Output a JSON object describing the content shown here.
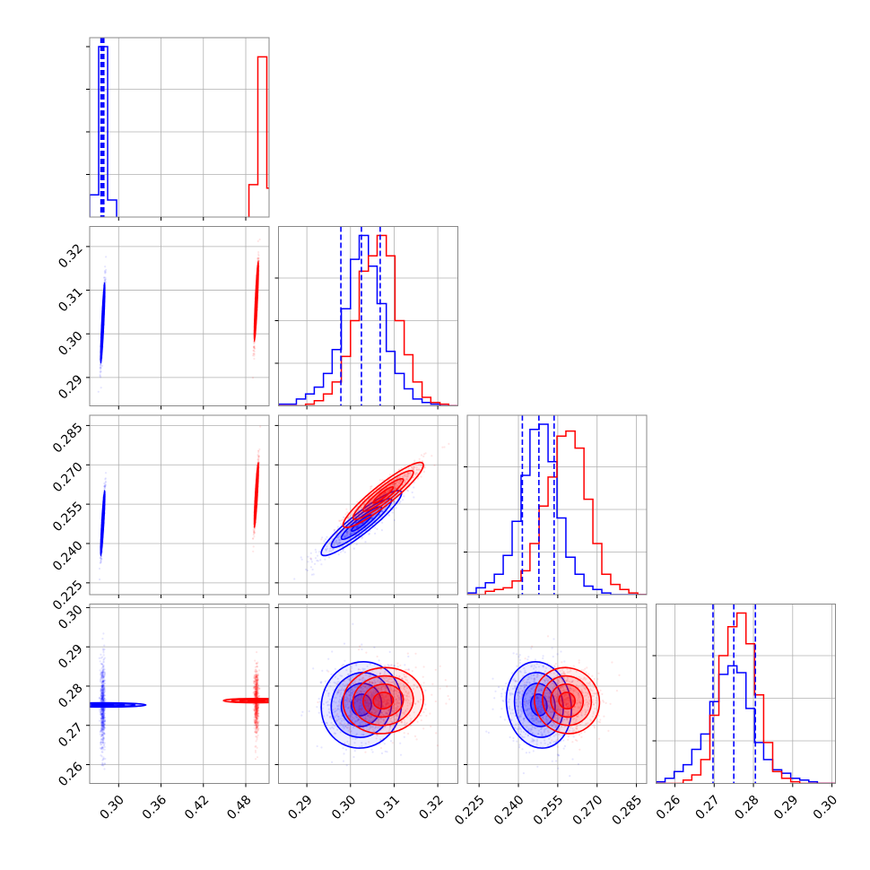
{
  "chart_data": {
    "type": "corner",
    "n_params": 4,
    "title": "",
    "legend": "none",
    "grid": true,
    "colors": {
      "series_a": "#0000ff",
      "series_b": "#ff0000",
      "frame": "#888888",
      "grid": "#b0b0b0"
    },
    "axes": [
      {
        "range": [
          0.259,
          0.513
        ],
        "ticks": [
          0.3,
          0.36,
          0.42,
          0.48
        ],
        "tick_labels": [
          "0.30",
          "0.36",
          "0.42",
          "0.48"
        ]
      },
      {
        "range": [
          0.2835,
          0.3246
        ],
        "ticks": [
          0.29,
          0.3,
          0.31,
          0.32
        ],
        "tick_labels": [
          "0.29",
          "0.30",
          "0.31",
          "0.32"
        ]
      },
      {
        "range": [
          0.2205,
          0.2889
        ],
        "ticks": [
          0.225,
          0.24,
          0.255,
          0.27,
          0.285
        ],
        "tick_labels": [
          "0.225",
          "0.240",
          "0.255",
          "0.270",
          "0.285"
        ]
      },
      {
        "range": [
          0.2552,
          0.3009
        ],
        "ticks": [
          0.26,
          0.27,
          0.28,
          0.29,
          0.3
        ],
        "tick_labels": [
          "0.26",
          "0.27",
          "0.28",
          "0.29",
          "0.30"
        ]
      }
    ],
    "quantiles_series_a": [
      [
        0.275,
        0.277,
        0.279
      ],
      [
        0.2978,
        0.3025,
        0.3068
      ],
      [
        0.2415,
        0.2478,
        0.2536
      ],
      [
        0.2697,
        0.275,
        0.2805
      ]
    ],
    "series": [
      {
        "name": "",
        "color": "#0000ff",
        "mean": [
          0.2775,
          0.3025,
          0.2478,
          0.2752
        ],
        "std": [
          0.0015,
          0.0046,
          0.0062,
          0.0055
        ],
        "corr": {
          "0-1": 0.9,
          "0-2": 0.9,
          "0-3": 0.0,
          "1-2": 0.92,
          "1-3": 0.05,
          "2-3": -0.1
        },
        "histograms": [
          {
            "edges": [
              0.259,
              0.2717,
              0.2844,
              0.2971
            ],
            "counts": [
              0.13,
              1.0,
              0.1
            ]
          },
          {
            "edges": [
              0.2835,
              0.2856,
              0.2876,
              0.2897,
              0.2917,
              0.2938,
              0.2958,
              0.2979,
              0.3,
              0.302,
              0.3041,
              0.3061,
              0.3082,
              0.3102,
              0.3123,
              0.3143,
              0.3164,
              0.3184,
              0.3205,
              0.3225,
              0.3246
            ],
            "counts": [
              0.01,
              0.01,
              0.04,
              0.07,
              0.11,
              0.19,
              0.33,
              0.57,
              0.86,
              1.0,
              0.82,
              0.6,
              0.32,
              0.19,
              0.1,
              0.04,
              0.02,
              0.01,
              0.0,
              0.0
            ]
          },
          {
            "edges": [
              0.2205,
              0.2239,
              0.2274,
              0.2308,
              0.2342,
              0.2376,
              0.241,
              0.2444,
              0.2479,
              0.2513,
              0.2547,
              0.2581,
              0.2616,
              0.265,
              0.2684,
              0.2718,
              0.2752,
              0.2787,
              0.2821,
              0.2855,
              0.2889
            ],
            "counts": [
              0.01,
              0.04,
              0.07,
              0.12,
              0.23,
              0.43,
              0.7,
              0.97,
              1.0,
              0.78,
              0.45,
              0.22,
              0.12,
              0.05,
              0.03,
              0.01,
              0.0,
              0.0,
              0.0,
              0.0
            ]
          },
          {
            "edges": [
              0.2552,
              0.2575,
              0.2598,
              0.2621,
              0.2643,
              0.2666,
              0.2689,
              0.2712,
              0.2735,
              0.2758,
              0.2781,
              0.2803,
              0.2826,
              0.2849,
              0.2872,
              0.2895,
              0.2918,
              0.2941,
              0.2963,
              0.2986,
              0.3009
            ],
            "counts": [
              0.01,
              0.03,
              0.07,
              0.11,
              0.2,
              0.29,
              0.48,
              0.64,
              0.69,
              0.65,
              0.44,
              0.24,
              0.14,
              0.08,
              0.06,
              0.03,
              0.02,
              0.01,
              0.0,
              0.0
            ]
          }
        ]
      },
      {
        "name": "",
        "color": "#ff0000",
        "mean": [
          0.495,
          0.3075,
          0.2585,
          0.2763
        ],
        "std": [
          0.0015,
          0.0046,
          0.0062,
          0.0042
        ],
        "corr": {
          "0-1": 0.9,
          "0-2": 0.9,
          "0-3": 0.0,
          "1-2": 0.92,
          "1-3": 0.05,
          "2-3": -0.05
        },
        "histograms": [
          {
            "edges": [
              0.4845,
              0.4971,
              0.5098,
              0.5225
            ],
            "counts": [
              0.19,
              0.94,
              0.17
            ]
          },
          {
            "edges": [
              0.2835,
              0.2856,
              0.2876,
              0.2897,
              0.2917,
              0.2938,
              0.2958,
              0.2979,
              0.3,
              0.302,
              0.3041,
              0.3061,
              0.3082,
              0.3102,
              0.3123,
              0.3143,
              0.3164,
              0.3184,
              0.3205,
              0.3225,
              0.3246
            ],
            "counts": [
              0.0,
              0.0,
              0.0,
              0.01,
              0.03,
              0.07,
              0.14,
              0.29,
              0.5,
              0.79,
              0.88,
              1.0,
              0.88,
              0.5,
              0.3,
              0.14,
              0.05,
              0.02,
              0.01,
              0.0
            ]
          },
          {
            "edges": [
              0.2205,
              0.2239,
              0.2274,
              0.2308,
              0.2342,
              0.2376,
              0.241,
              0.2444,
              0.2479,
              0.2513,
              0.2547,
              0.2581,
              0.2616,
              0.265,
              0.2684,
              0.2718,
              0.2752,
              0.2787,
              0.2821,
              0.2855,
              0.2889
            ],
            "counts": [
              0.0,
              0.0,
              0.02,
              0.03,
              0.04,
              0.08,
              0.14,
              0.3,
              0.52,
              0.69,
              0.93,
              0.96,
              0.86,
              0.56,
              0.3,
              0.12,
              0.06,
              0.03,
              0.01,
              0.0
            ]
          },
          {
            "edges": [
              0.2552,
              0.2575,
              0.2598,
              0.2621,
              0.2643,
              0.2666,
              0.2689,
              0.2712,
              0.2735,
              0.2758,
              0.2781,
              0.2803,
              0.2826,
              0.2849,
              0.2872,
              0.2895,
              0.2918,
              0.2941,
              0.2963,
              0.2986,
              0.3009
            ],
            "counts": [
              0.0,
              0.0,
              0.0,
              0.02,
              0.05,
              0.14,
              0.4,
              0.75,
              0.92,
              1.0,
              0.82,
              0.52,
              0.24,
              0.07,
              0.03,
              0.01,
              0.0,
              0.0,
              0.0,
              0.0
            ]
          }
        ]
      }
    ]
  }
}
